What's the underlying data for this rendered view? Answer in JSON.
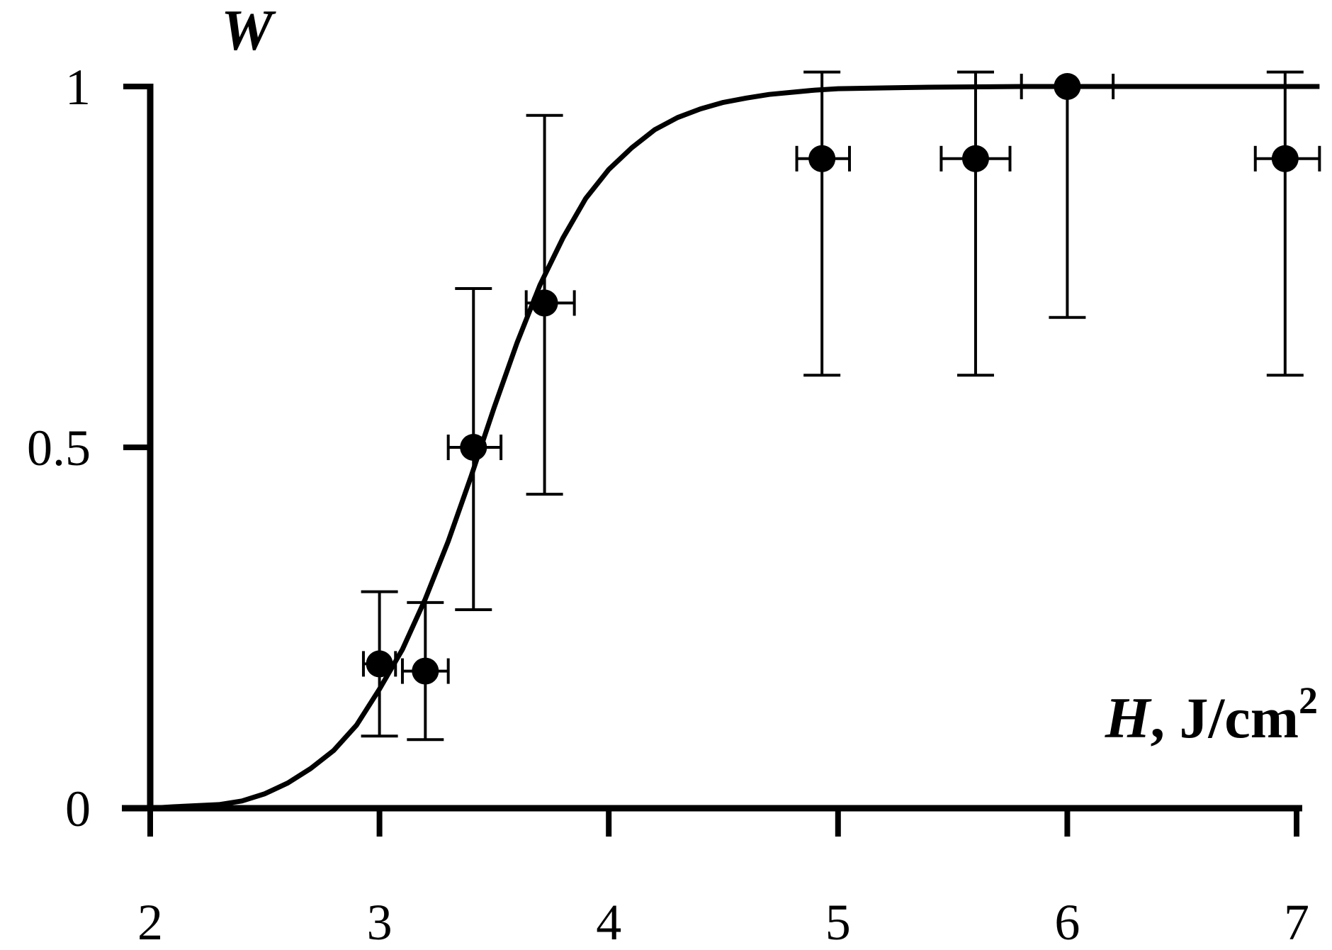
{
  "chart_data": {
    "type": "scatter",
    "xlabel_symbol": "H",
    "xlabel_unit_prefix": ", J/cm",
    "xlabel_unit_exp": "2",
    "ylabel": "W",
    "xlim": [
      2,
      7
    ],
    "ylim": [
      0,
      1
    ],
    "x_ticks": [
      2,
      3,
      4,
      5,
      6,
      7
    ],
    "x_tick_labels": [
      "2",
      "3",
      "4",
      "5",
      "6",
      "7"
    ],
    "y_ticks": [
      0,
      0.5,
      1
    ],
    "y_tick_labels": [
      "0",
      "0.5",
      "1"
    ],
    "grid": false,
    "legend": "none",
    "colors": {
      "line": "#000000",
      "points": "#000000"
    },
    "points": [
      {
        "x": 3.0,
        "y": 0.2,
        "y_low": 0.1,
        "y_high": 0.3,
        "x_low": 2.93,
        "x_high": 3.07
      },
      {
        "x": 3.2,
        "y": 0.19,
        "y_low": 0.095,
        "y_high": 0.285,
        "x_low": 3.1,
        "x_high": 3.3
      },
      {
        "x": 3.41,
        "y": 0.5,
        "y_low": 0.275,
        "y_high": 0.72,
        "x_low": 3.3,
        "x_high": 3.53
      },
      {
        "x": 3.72,
        "y": 0.7,
        "y_low": 0.435,
        "y_high": 0.96,
        "x_low": 3.64,
        "x_high": 3.85
      },
      {
        "x": 4.93,
        "y": 0.9,
        "y_low": 0.6,
        "y_high": 1.02,
        "x_low": 4.82,
        "x_high": 5.05
      },
      {
        "x": 5.6,
        "y": 0.9,
        "y_low": 0.6,
        "y_high": 1.02,
        "x_low": 5.45,
        "x_high": 5.75
      },
      {
        "x": 6.0,
        "y": 1.0,
        "y_low": 0.68,
        "y_high": 1.0,
        "x_low": 5.8,
        "x_high": 6.2
      },
      {
        "x": 6.95,
        "y": 0.9,
        "y_low": 0.6,
        "y_high": 1.02,
        "x_low": 6.82,
        "x_high": 7.1
      }
    ],
    "curve": {
      "x": [
        2.0,
        2.1,
        2.3,
        2.4,
        2.5,
        2.6,
        2.7,
        2.8,
        2.9,
        3.0,
        3.1,
        3.2,
        3.3,
        3.4,
        3.5,
        3.6,
        3.7,
        3.8,
        3.9,
        4.0,
        4.1,
        4.2,
        4.3,
        4.4,
        4.5,
        4.6,
        4.7,
        4.8,
        4.9,
        5.0,
        5.2,
        5.4,
        5.6,
        5.8,
        6.0,
        6.5,
        7.0,
        7.1
      ],
      "y": [
        0.0,
        0.002,
        0.005,
        0.01,
        0.02,
        0.035,
        0.055,
        0.08,
        0.115,
        0.165,
        0.22,
        0.29,
        0.37,
        0.46,
        0.555,
        0.645,
        0.725,
        0.79,
        0.845,
        0.885,
        0.915,
        0.94,
        0.957,
        0.969,
        0.978,
        0.984,
        0.989,
        0.992,
        0.995,
        0.997,
        0.998,
        0.999,
        0.9995,
        1.0,
        1.0,
        1.0,
        1.0,
        1.0
      ]
    }
  }
}
